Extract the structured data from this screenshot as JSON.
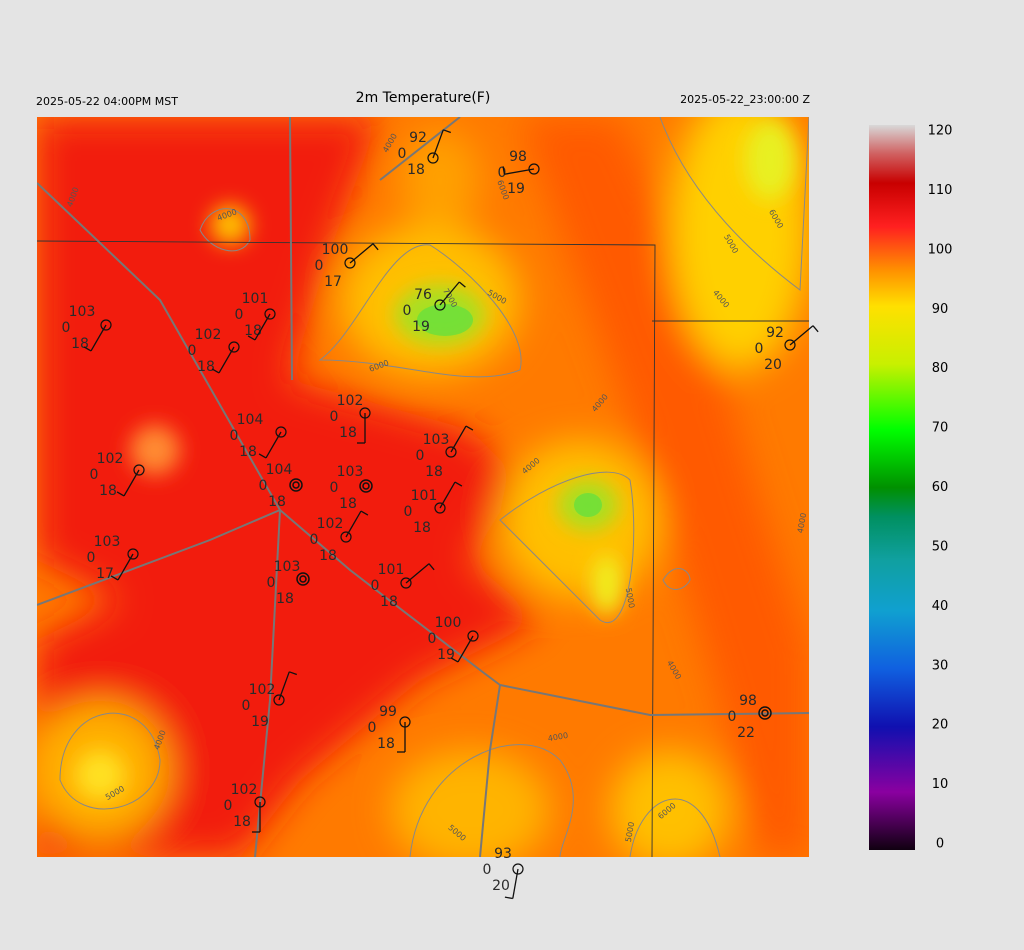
{
  "header": {
    "valid_local": "2025-05-22 04:00PM MST",
    "title": "2m Temperature(F)",
    "valid_utc": "2025-05-22_23:00:00 Z"
  },
  "colorbar": {
    "ticks": [
      0,
      10,
      20,
      30,
      40,
      50,
      60,
      70,
      80,
      90,
      100,
      110,
      120
    ]
  },
  "stations": [
    {
      "temperature": 92,
      "visibility": 0,
      "dewpoint": 18
    },
    {
      "temperature": 98,
      "visibility": 0,
      "dewpoint": 19
    },
    {
      "temperature": 100,
      "visibility": 0,
      "dewpoint": 17
    },
    {
      "temperature": 76,
      "visibility": 0,
      "dewpoint": 19
    },
    {
      "temperature": 101,
      "visibility": 0,
      "dewpoint": 18
    },
    {
      "temperature": 103,
      "visibility": 0,
      "dewpoint": 18
    },
    {
      "temperature": 102,
      "visibility": 0,
      "dewpoint": 18
    },
    {
      "temperature": 92,
      "visibility": 0,
      "dewpoint": 20
    },
    {
      "temperature": 102,
      "visibility": 0,
      "dewpoint": 18
    },
    {
      "temperature": 104,
      "visibility": 0,
      "dewpoint": 18
    },
    {
      "temperature": 103,
      "visibility": 0,
      "dewpoint": 18
    },
    {
      "temperature": 102,
      "visibility": 0,
      "dewpoint": 18
    },
    {
      "temperature": 104,
      "visibility": 0,
      "dewpoint": 18
    },
    {
      "temperature": 103,
      "visibility": 0,
      "dewpoint": 18
    },
    {
      "temperature": 101,
      "visibility": 0,
      "dewpoint": 18
    },
    {
      "temperature": 102,
      "visibility": 0,
      "dewpoint": 18
    },
    {
      "temperature": 103,
      "visibility": 0,
      "dewpoint": 17
    },
    {
      "temperature": 103,
      "visibility": 0,
      "dewpoint": 18
    },
    {
      "temperature": 101,
      "visibility": 0,
      "dewpoint": 18
    },
    {
      "temperature": 100,
      "visibility": 0,
      "dewpoint": 19
    },
    {
      "temperature": 102,
      "visibility": 0,
      "dewpoint": 19
    },
    {
      "temperature": 98,
      "visibility": 0,
      "dewpoint": 22
    },
    {
      "temperature": 99,
      "visibility": 0,
      "dewpoint": 18
    },
    {
      "temperature": 102,
      "visibility": 0,
      "dewpoint": 18
    },
    {
      "temperature": 93,
      "visibility": 0,
      "dewpoint": 20
    }
  ],
  "contour_labels": [
    "4000",
    "4000",
    "4000",
    "5000",
    "7000",
    "6000",
    "4000",
    "4000",
    "6000",
    "5000",
    "4000",
    "5000",
    "4000",
    "4000",
    "4000",
    "5000",
    "4000",
    "5000",
    "6000",
    "5000",
    "6000"
  ]
}
